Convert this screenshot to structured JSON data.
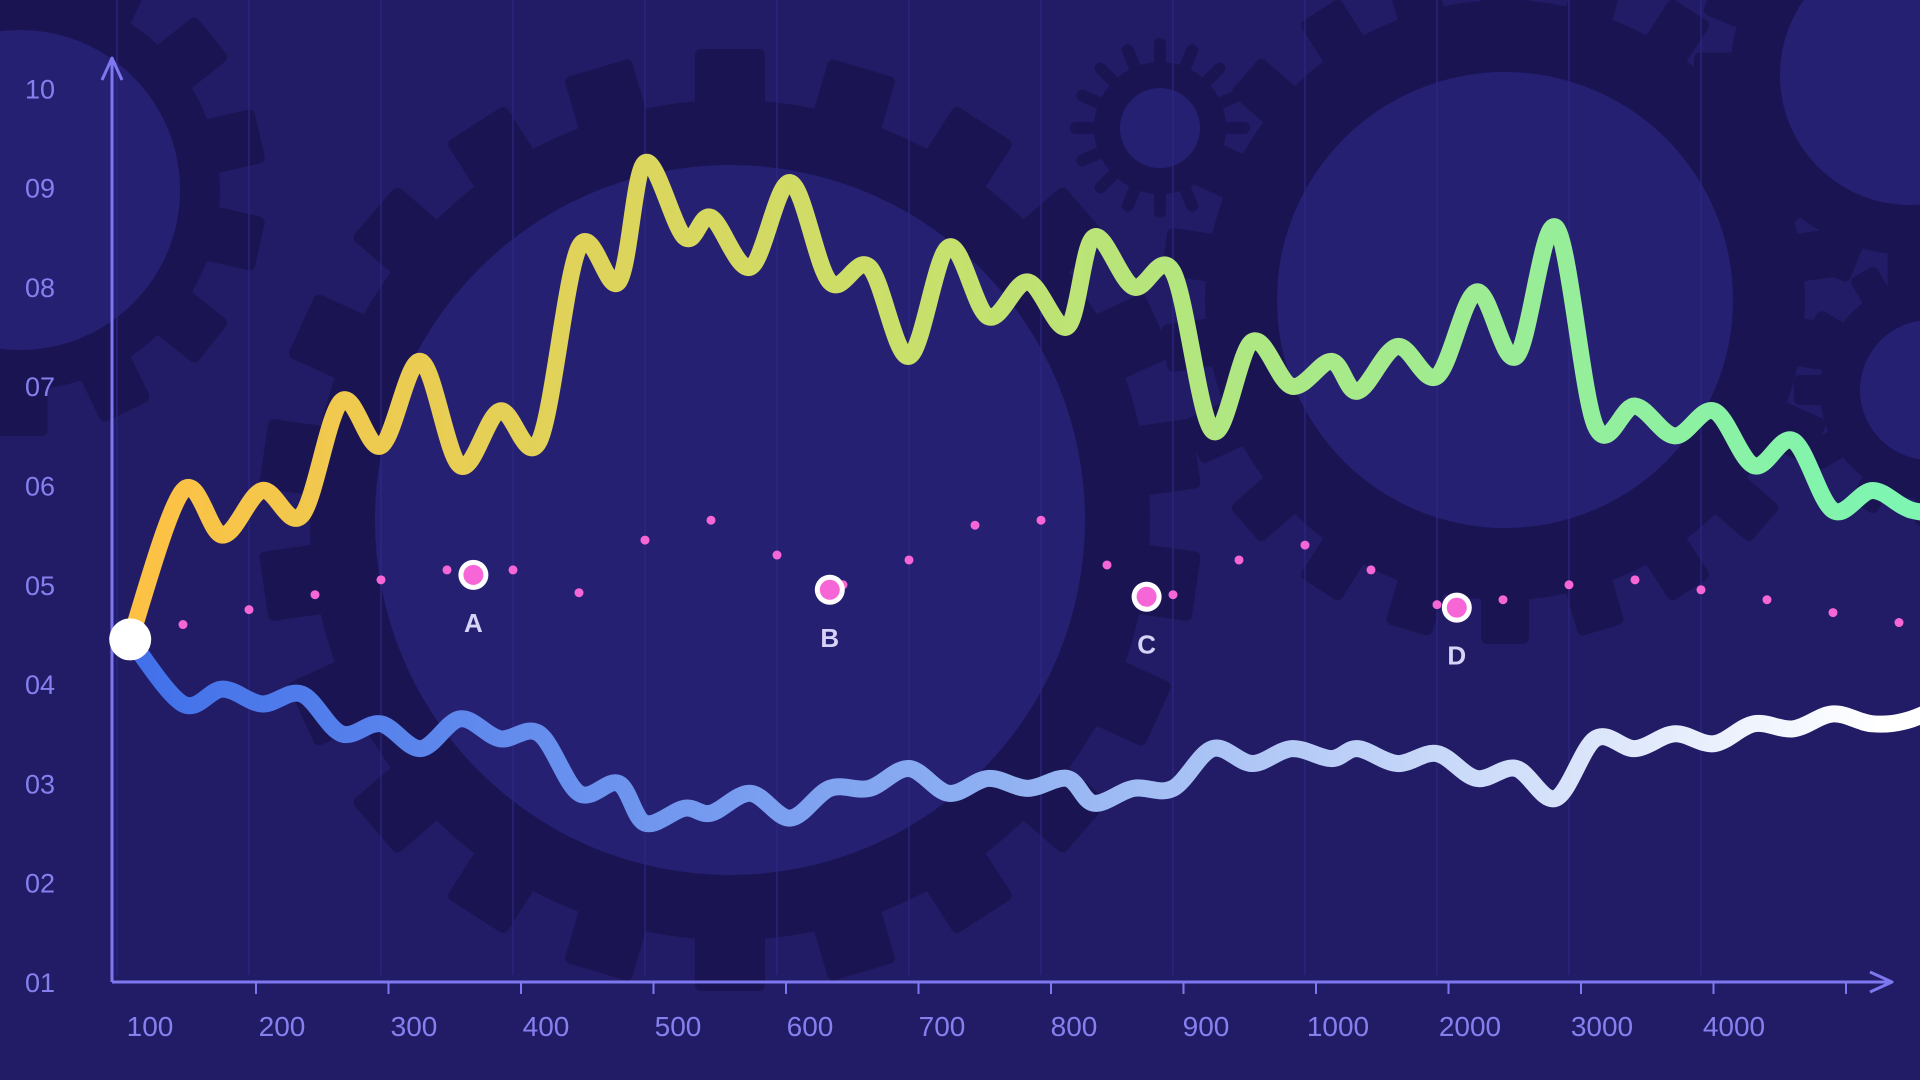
{
  "chart_data": {
    "type": "line",
    "x_tick_labels": [
      "100",
      "200",
      "300",
      "400",
      "500",
      "600",
      "700",
      "800",
      "900",
      "1000",
      "2000",
      "3000",
      "4000"
    ],
    "y_tick_labels": [
      "01",
      "02",
      "03",
      "04",
      "05",
      "06",
      "07",
      "08",
      "09",
      "10"
    ],
    "ylim": [
      1,
      10
    ],
    "x_index_range": [
      0,
      13.5
    ],
    "grid": "vertical lines",
    "x_axis_arrow": true,
    "y_axis_arrow": true,
    "series": [
      {
        "style": "thick gradient line",
        "gradient": [
          "#ffc043",
          "#c9e06a",
          "#7ef5b0"
        ],
        "x": [
          -0.4,
          0.0,
          0.3,
          0.6,
          0.9,
          1.2,
          1.5,
          1.8,
          2.1,
          2.4,
          2.7,
          3.0,
          3.3,
          3.5,
          3.8,
          4.0,
          4.3,
          4.6,
          4.9,
          5.2,
          5.5,
          5.8,
          6.1,
          6.4,
          6.7,
          6.9,
          7.2,
          7.5,
          7.8,
          8.1,
          8.4,
          8.7,
          8.9,
          9.2,
          9.5,
          9.8,
          10.1,
          10.4,
          10.7,
          11.0,
          11.3,
          11.6,
          11.9,
          12.2,
          12.5,
          12.8,
          13.1,
          13.5
        ],
        "y": [
          4.45,
          5.95,
          5.5,
          5.95,
          5.7,
          6.85,
          6.4,
          7.25,
          6.2,
          6.75,
          6.45,
          8.4,
          8.05,
          9.25,
          8.5,
          8.7,
          8.2,
          9.05,
          8.05,
          8.2,
          7.3,
          8.4,
          7.7,
          8.05,
          7.6,
          8.5,
          8.0,
          8.15,
          6.55,
          7.45,
          7.0,
          7.25,
          6.95,
          7.4,
          7.1,
          7.95,
          7.3,
          8.6,
          6.6,
          6.8,
          6.5,
          6.75,
          6.2,
          6.45,
          5.75,
          5.95,
          5.75,
          5.7
        ]
      },
      {
        "style": "thick gradient line",
        "gradient": [
          "#3f6ee9",
          "#8fb0f2",
          "#ffffff"
        ],
        "x": [
          -0.4,
          0.0,
          0.3,
          0.6,
          0.9,
          1.2,
          1.5,
          1.8,
          2.1,
          2.4,
          2.7,
          3.0,
          3.3,
          3.5,
          3.8,
          4.0,
          4.3,
          4.6,
          4.9,
          5.2,
          5.5,
          5.8,
          6.1,
          6.4,
          6.7,
          6.9,
          7.2,
          7.5,
          7.8,
          8.1,
          8.4,
          8.7,
          8.9,
          9.2,
          9.5,
          9.8,
          10.1,
          10.4,
          10.7,
          11.0,
          11.3,
          11.6,
          11.9,
          12.2,
          12.5,
          12.8,
          13.1,
          13.5
        ],
        "y": [
          4.45,
          3.8,
          3.95,
          3.8,
          3.9,
          3.5,
          3.6,
          3.35,
          3.65,
          3.45,
          3.5,
          2.9,
          3.0,
          2.6,
          2.75,
          2.7,
          2.9,
          2.65,
          2.95,
          2.95,
          3.15,
          2.9,
          3.05,
          2.95,
          3.05,
          2.8,
          2.95,
          2.95,
          3.35,
          3.2,
          3.35,
          3.25,
          3.35,
          3.2,
          3.3,
          3.05,
          3.15,
          2.85,
          3.45,
          3.35,
          3.5,
          3.4,
          3.6,
          3.55,
          3.7,
          3.6,
          3.65,
          3.9
        ]
      },
      {
        "style": "dotted",
        "color": "#f766d6",
        "x": [
          0.0,
          0.5,
          1.0,
          1.5,
          2.0,
          2.5,
          3.0,
          3.5,
          4.0,
          4.5,
          5.0,
          5.5,
          6.0,
          6.5,
          7.0,
          7.5,
          8.0,
          8.5,
          9.0,
          9.5,
          10.0,
          10.5,
          11.0,
          11.5,
          12.0,
          12.5,
          13.0,
          13.5
        ],
        "y": [
          4.6,
          4.75,
          4.9,
          5.05,
          5.15,
          5.15,
          4.92,
          5.45,
          5.65,
          5.3,
          5.0,
          5.25,
          5.6,
          5.65,
          5.2,
          4.9,
          5.25,
          5.4,
          5.15,
          4.8,
          4.85,
          5.0,
          5.05,
          4.95,
          4.85,
          4.72,
          4.62,
          4.6
        ]
      }
    ],
    "annotations": [
      {
        "label": "A",
        "x": 2.2,
        "y": 5.1
      },
      {
        "label": "B",
        "x": 4.9,
        "y": 4.95
      },
      {
        "label": "C",
        "x": 7.3,
        "y": 4.88
      },
      {
        "label": "D",
        "x": 9.65,
        "y": 4.77
      }
    ],
    "end_markers": [
      {
        "x": -0.4,
        "y": 4.45,
        "color": "#ffffff"
      },
      {
        "x": 13.5,
        "y": 5.7,
        "color": "#6ff0a8"
      },
      {
        "x": 13.5,
        "y": 4.6,
        "color": "#f766d6",
        "ring": "#ffffff"
      },
      {
        "x": 13.5,
        "y": 3.9,
        "color": "#f766d6"
      }
    ],
    "colors": {
      "background": "#221c66",
      "gear": "#1a1552",
      "gear_hub": "#262073",
      "axis": "#7d77f0",
      "tick_label": "#8680ef",
      "grid": "#2d2783",
      "annotation_label": "#d6d3f7",
      "dot_ring": "#ffffff"
    }
  }
}
